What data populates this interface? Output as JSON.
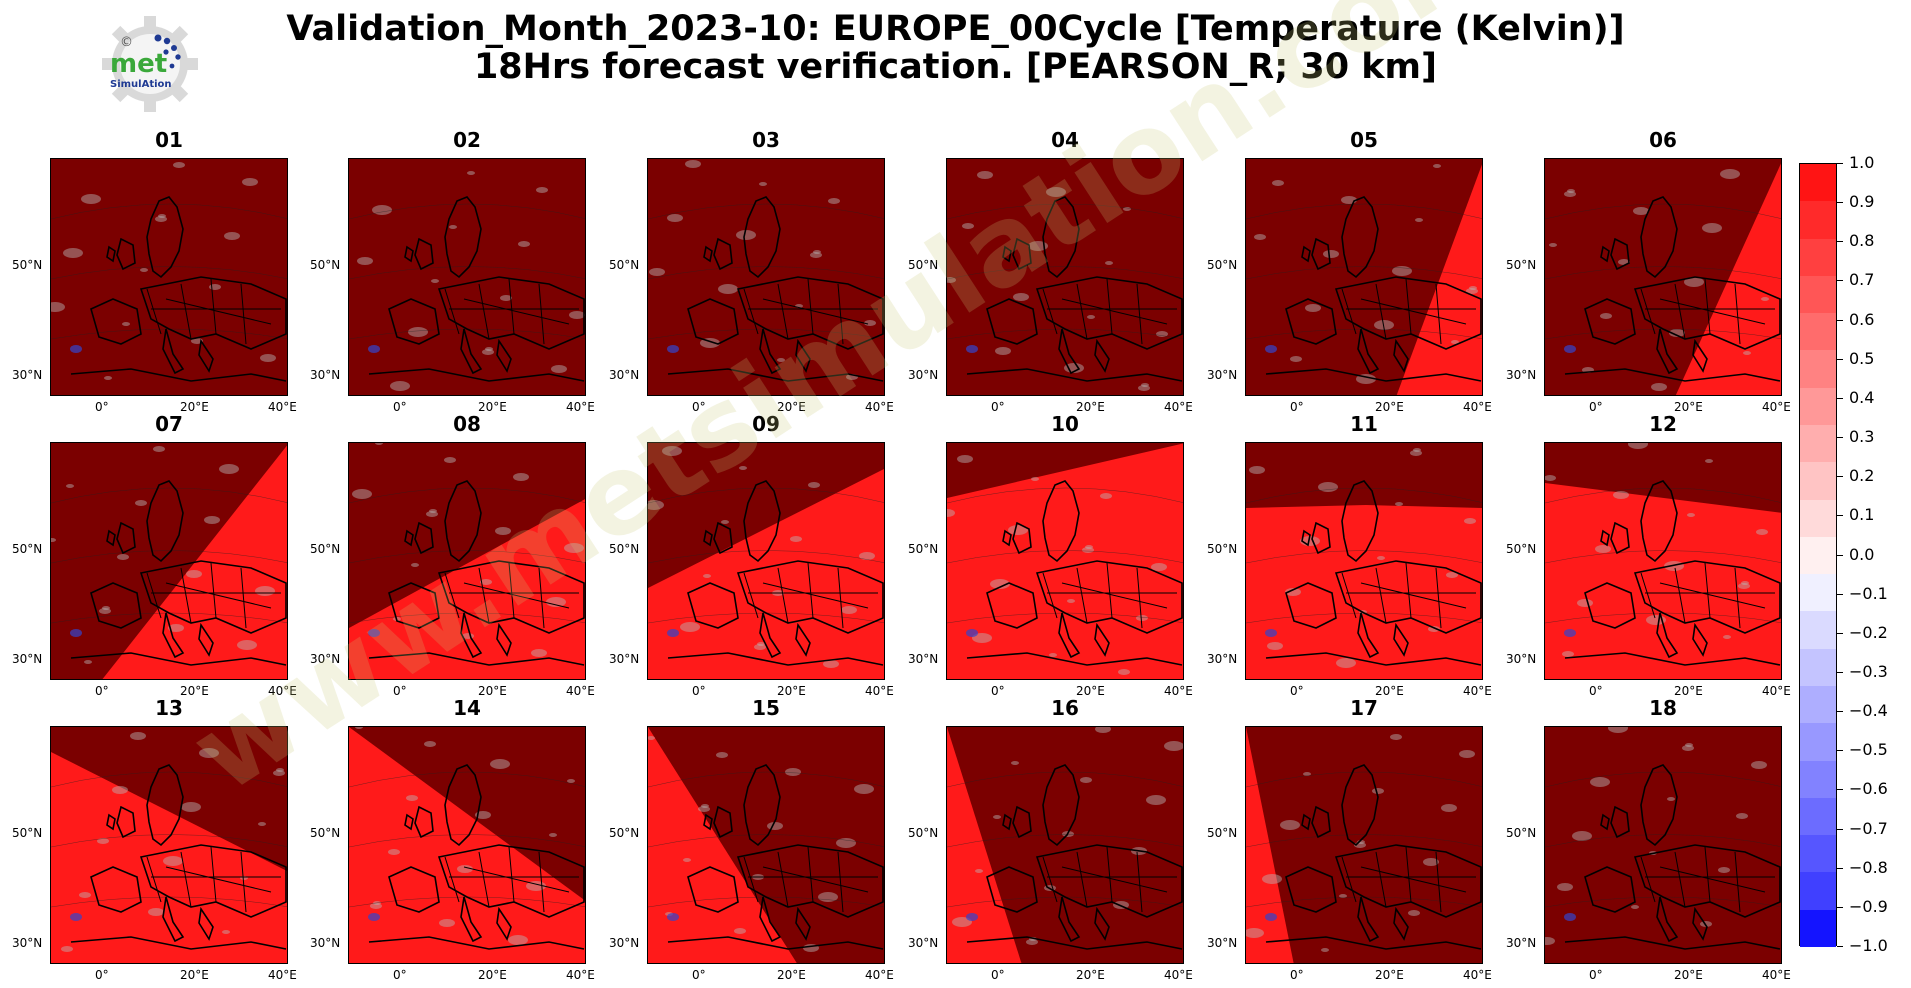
{
  "title_line1": "Validation_Month_2023-10: EUROPE_00Cycle [Temperature (Kelvin)]",
  "title_line2": "18Hrs forecast verification.  [PEARSON_R; 30 km]",
  "logo": {
    "text": "met",
    "subtext": "SimulAtion",
    "symbol": "©"
  },
  "watermark": "www.metsimulation.com",
  "colors": {
    "dark": "#7b0000",
    "bright": "#ff1a1a",
    "coast": "#000000"
  },
  "axis_labels": {
    "lat_top": "50°N",
    "lat_bottom": "30°N",
    "lon": [
      "0°",
      "20°E",
      "40°E"
    ]
  },
  "panels": [
    {
      "label": "01",
      "shade": "none"
    },
    {
      "label": "02",
      "shade": "none"
    },
    {
      "label": "03",
      "shade": "none"
    },
    {
      "label": "04",
      "shade": "none"
    },
    {
      "label": "05",
      "shade": "p5"
    },
    {
      "label": "06",
      "shade": "p6"
    },
    {
      "label": "07",
      "shade": "p7"
    },
    {
      "label": "08",
      "shade": "p8"
    },
    {
      "label": "09",
      "shade": "p9"
    },
    {
      "label": "10",
      "shade": "p10"
    },
    {
      "label": "11",
      "shade": "p11"
    },
    {
      "label": "12",
      "shade": "p12"
    },
    {
      "label": "13",
      "shade": "p13"
    },
    {
      "label": "14",
      "shade": "p14"
    },
    {
      "label": "15",
      "shade": "p15"
    },
    {
      "label": "16",
      "shade": "p16"
    },
    {
      "label": "17",
      "shade": "p17"
    },
    {
      "label": "18",
      "shade": "none"
    }
  ],
  "colorbar": {
    "ticks": [
      "1.0",
      "0.9",
      "0.8",
      "0.7",
      "0.6",
      "0.5",
      "0.4",
      "0.3",
      "0.2",
      "0.1",
      "0.0",
      "−0.1",
      "−0.2",
      "−0.3",
      "−0.4",
      "−0.5",
      "−0.6",
      "−0.7",
      "−0.8",
      "−0.9",
      "−1.0"
    ],
    "colors": [
      "#ff1414",
      "#ff2a2a",
      "#ff4040",
      "#ff5656",
      "#ff6c6c",
      "#ff8282",
      "#ff9898",
      "#ffaeae",
      "#ffc4c4",
      "#ffdada",
      "#fff0f0",
      "#f0f0ff",
      "#dadaff",
      "#c4c4ff",
      "#aeaeff",
      "#9898ff",
      "#8282ff",
      "#6c6cff",
      "#5656ff",
      "#4040ff",
      "#1414ff"
    ]
  }
}
